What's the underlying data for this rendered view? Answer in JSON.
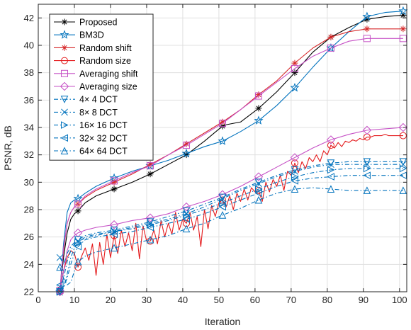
{
  "chart_data": {
    "type": "line",
    "title": "",
    "xlabel": "Iteration",
    "ylabel": "PSNR, dB",
    "xlim": [
      0,
      102
    ],
    "ylim": [
      22,
      43
    ],
    "xticks": [
      0,
      10,
      20,
      30,
      40,
      50,
      60,
      70,
      80,
      90,
      100
    ],
    "yticks": [
      22,
      24,
      26,
      28,
      30,
      32,
      34,
      36,
      38,
      40,
      42
    ],
    "grid": true,
    "legend_position": "top-left",
    "series": [
      {
        "name": "Proposed",
        "color": "#000000",
        "marker": "asterisk",
        "dash": "solid",
        "x": [
          6,
          7,
          8,
          9,
          10,
          11,
          13,
          16,
          21,
          26,
          31,
          36,
          41,
          46,
          51,
          52,
          56,
          61,
          66,
          71,
          76,
          81,
          86,
          91,
          96,
          101
        ],
        "y": [
          22.2,
          24.5,
          26.3,
          27.3,
          27.7,
          27.9,
          28.5,
          29.0,
          29.5,
          30.0,
          30.6,
          31.3,
          32.0,
          33.0,
          34.1,
          34.2,
          34.4,
          35.4,
          36.6,
          38.0,
          39.5,
          40.6,
          41.3,
          41.9,
          42.1,
          42.2
        ]
      },
      {
        "name": "BM3D",
        "color": "#0072BD",
        "marker": "star",
        "dash": "solid",
        "x": [
          6,
          7,
          8,
          9,
          10,
          11,
          13,
          16,
          21,
          26,
          31,
          36,
          41,
          46,
          51,
          56,
          61,
          66,
          71,
          76,
          81,
          86,
          91,
          96,
          101
        ],
        "y": [
          22.0,
          25.5,
          27.8,
          28.5,
          28.7,
          28.8,
          29.2,
          29.7,
          30.3,
          30.8,
          31.2,
          31.6,
          32.1,
          32.6,
          33.0,
          33.7,
          34.5,
          35.6,
          36.9,
          38.4,
          39.8,
          41.0,
          42.1,
          42.4,
          42.5
        ]
      },
      {
        "name": "Random shift",
        "color": "#D62728",
        "marker": "asterisk",
        "dash": "solid",
        "x": [
          6,
          7,
          8,
          9,
          10,
          11,
          13,
          16,
          21,
          26,
          31,
          36,
          41,
          46,
          51,
          56,
          61,
          66,
          71,
          76,
          81,
          86,
          91,
          96,
          101
        ],
        "y": [
          22.1,
          25.0,
          27.0,
          27.8,
          28.2,
          28.4,
          28.9,
          29.4,
          30.0,
          30.6,
          31.3,
          32.0,
          32.8,
          33.6,
          34.4,
          35.3,
          36.4,
          37.4,
          38.7,
          39.8,
          40.6,
          41.0,
          41.2,
          41.2,
          41.2
        ]
      },
      {
        "name": "Random size",
        "color": "#E41A1C",
        "marker": "circle",
        "dash": "solid",
        "x": [
          6,
          7,
          8,
          9,
          10,
          11,
          12,
          13,
          14,
          15,
          16,
          17,
          18,
          19,
          20,
          21,
          22,
          23,
          24,
          25,
          26,
          27,
          28,
          29,
          30,
          31,
          32,
          33,
          34,
          35,
          36,
          37,
          38,
          39,
          40,
          41,
          42,
          43,
          44,
          45,
          46,
          47,
          48,
          49,
          50,
          51,
          52,
          53,
          54,
          55,
          56,
          57,
          58,
          59,
          60,
          61,
          62,
          63,
          64,
          65,
          66,
          67,
          68,
          69,
          70,
          71,
          72,
          73,
          74,
          75,
          76,
          77,
          78,
          79,
          80,
          81,
          82,
          83,
          84,
          85,
          86,
          87,
          88,
          89,
          90,
          91,
          92,
          93,
          94,
          95,
          96,
          97,
          98,
          99,
          100,
          101
        ],
        "y": [
          22.0,
          23.5,
          24.5,
          25.0,
          24.8,
          23.8,
          24.6,
          25.2,
          24.3,
          25.5,
          23.2,
          25.6,
          24.0,
          26.2,
          24.5,
          26.1,
          24.8,
          26.5,
          25.3,
          26.3,
          25.0,
          27.0,
          24.4,
          26.8,
          25.7,
          25.7,
          26.5,
          25.5,
          27.2,
          26.0,
          27.0,
          26.2,
          27.8,
          26.5,
          27.3,
          27.0,
          27.8,
          26.5,
          27.5,
          25.3,
          28.0,
          26.6,
          28.3,
          27.5,
          28.5,
          28.7,
          28.2,
          29.0,
          28.0,
          29.2,
          28.6,
          29.5,
          28.7,
          29.6,
          29.3,
          29.4,
          28.6,
          30.0,
          29.3,
          30.2,
          29.7,
          30.5,
          29.4,
          30.8,
          30.5,
          31.4,
          30.7,
          31.5,
          31.0,
          31.8,
          31.5,
          32.0,
          31.5,
          32.3,
          32.0,
          32.7,
          32.5,
          32.9,
          32.6,
          33.0,
          32.9,
          33.1,
          33.0,
          33.2,
          33.1,
          33.3,
          33.3,
          33.4,
          33.4,
          33.4,
          33.5,
          33.4,
          33.4,
          33.4,
          33.4,
          33.4
        ]
      },
      {
        "name": "Averaging shift",
        "color": "#C651C6",
        "marker": "square",
        "dash": "solid",
        "x": [
          6,
          7,
          8,
          9,
          10,
          11,
          13,
          16,
          21,
          26,
          31,
          36,
          41,
          46,
          51,
          56,
          61,
          66,
          71,
          76,
          81,
          86,
          91,
          96,
          101
        ],
        "y": [
          22.1,
          25.2,
          27.0,
          27.8,
          28.2,
          28.4,
          29.0,
          29.5,
          30.1,
          30.7,
          31.2,
          32.0,
          32.7,
          33.5,
          34.3,
          35.3,
          36.3,
          37.3,
          38.3,
          39.2,
          39.8,
          40.3,
          40.5,
          40.5,
          40.5
        ]
      },
      {
        "name": "Averaging size",
        "color": "#C651C6",
        "marker": "diamond",
        "dash": "solid",
        "x": [
          6,
          7,
          8,
          9,
          10,
          11,
          13,
          16,
          21,
          26,
          31,
          36,
          41,
          46,
          51,
          56,
          61,
          66,
          71,
          76,
          81,
          86,
          91,
          96,
          101
        ],
        "y": [
          22.0,
          23.5,
          25.0,
          25.8,
          26.1,
          26.3,
          26.5,
          26.7,
          26.9,
          27.2,
          27.4,
          27.7,
          28.2,
          28.6,
          29.1,
          29.7,
          30.4,
          31.1,
          31.8,
          32.5,
          33.1,
          33.5,
          33.8,
          33.9,
          34.0
        ]
      },
      {
        "name": "4× 4 DCT",
        "color": "#0072BD",
        "marker": "triangle-down",
        "dash": "dashdot",
        "x": [
          6,
          7,
          8,
          9,
          10,
          11,
          13,
          16,
          21,
          26,
          31,
          36,
          41,
          46,
          51,
          56,
          61,
          66,
          71,
          76,
          81,
          86,
          91,
          96,
          101
        ],
        "y": [
          22.0,
          23.0,
          24.2,
          25.0,
          25.5,
          25.8,
          26.1,
          26.3,
          26.5,
          26.8,
          27.1,
          27.5,
          27.9,
          28.4,
          28.9,
          29.5,
          30.0,
          30.5,
          30.9,
          31.2,
          31.4,
          31.5,
          31.5,
          31.5,
          31.5
        ]
      },
      {
        "name": "8× 8 DCT",
        "color": "#0072BD",
        "marker": "x",
        "dash": "dashdot",
        "x": [
          6,
          7,
          8,
          9,
          10,
          11,
          13,
          16,
          21,
          26,
          31,
          36,
          41,
          46,
          51,
          56,
          61,
          66,
          71,
          76,
          81,
          86,
          91,
          96,
          101
        ],
        "y": [
          24.5,
          24.0,
          24.8,
          25.3,
          25.6,
          25.7,
          25.9,
          26.1,
          26.4,
          26.7,
          27.0,
          27.3,
          27.7,
          28.2,
          28.8,
          29.4,
          29.9,
          30.4,
          30.8,
          31.1,
          31.3,
          31.3,
          31.3,
          31.3,
          31.3
        ]
      },
      {
        "name": "16× 16 DCT",
        "color": "#0072BD",
        "marker": "triangle-right",
        "dash": "dashdot",
        "x": [
          6,
          7,
          8,
          9,
          10,
          11,
          13,
          16,
          21,
          26,
          31,
          36,
          41,
          46,
          51,
          56,
          61,
          66,
          71,
          76,
          81,
          86,
          91,
          96,
          101
        ],
        "y": [
          22.0,
          22.3,
          23.3,
          24.5,
          25.2,
          25.6,
          26.0,
          26.2,
          26.4,
          26.6,
          26.9,
          27.2,
          27.6,
          28.0,
          28.5,
          29.0,
          29.5,
          30.0,
          30.4,
          30.7,
          30.9,
          31.0,
          31.0,
          31.0,
          31.0
        ]
      },
      {
        "name": "32× 32 DCT",
        "color": "#0072BD",
        "marker": "triangle-left",
        "dash": "dashdot",
        "x": [
          6,
          7,
          8,
          9,
          10,
          11,
          13,
          16,
          21,
          26,
          31,
          36,
          41,
          46,
          51,
          56,
          61,
          66,
          71,
          76,
          81,
          86,
          91,
          96,
          101
        ],
        "y": [
          22.5,
          22.3,
          23.0,
          24.0,
          24.8,
          25.3,
          25.8,
          26.0,
          26.2,
          26.4,
          26.7,
          27.0,
          27.3,
          27.7,
          28.2,
          28.7,
          29.2,
          29.7,
          30.1,
          30.3,
          30.4,
          30.5,
          30.5,
          30.5,
          30.5
        ]
      },
      {
        "name": "64× 64 DCT",
        "color": "#0072BD",
        "marker": "triangle-up",
        "dash": "dashdot",
        "x": [
          6,
          7,
          8,
          9,
          10,
          11,
          13,
          16,
          21,
          26,
          31,
          36,
          41,
          46,
          51,
          56,
          61,
          66,
          71,
          76,
          81,
          86,
          91,
          96,
          101
        ],
        "y": [
          23.8,
          23.0,
          22.5,
          22.7,
          23.5,
          24.2,
          24.6,
          24.9,
          25.2,
          25.5,
          25.8,
          26.1,
          26.6,
          27.0,
          27.6,
          28.1,
          28.7,
          29.2,
          29.5,
          29.6,
          29.5,
          29.4,
          29.4,
          29.4,
          29.4
        ]
      }
    ]
  }
}
